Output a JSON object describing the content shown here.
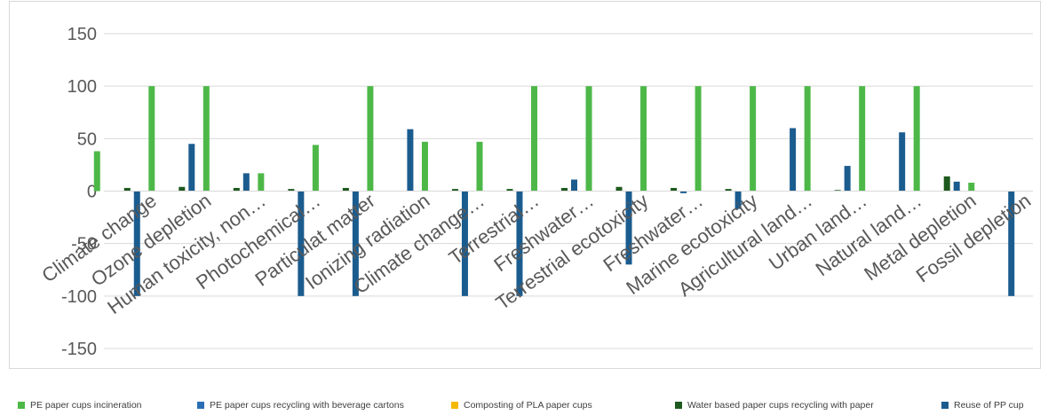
{
  "chart_data": {
    "type": "bar",
    "title": "",
    "xlabel": "",
    "ylabel": "",
    "ylim": [
      -150,
      150
    ],
    "yticks": [
      -150,
      -100,
      -50,
      0,
      50,
      100,
      150
    ],
    "grid": true,
    "legend_position": "bottom",
    "categories": [
      "Climate change",
      "Ozone depletion",
      "Human toxicity, non…",
      "Photochemical…",
      "Particulat matter",
      "Ionizing radiation",
      "Climate change…",
      "Terrestrial…",
      "Freshwater…",
      "Terrestrial ecotoxicity",
      "Freshwater…",
      "Marine ecotoxicity",
      "Agricultural land…",
      "Urban land…",
      "Natural land…",
      "Metal depletion",
      "Fossil depletion"
    ],
    "series": [
      {
        "name": "PE paper cups incineration",
        "color": "#4db848",
        "values": [
          38,
          100,
          100,
          17,
          44,
          100,
          47,
          47,
          100,
          100,
          100,
          100,
          100,
          100,
          100,
          100,
          8
        ]
      },
      {
        "name": "PE paper cups recycling with beverage cartons",
        "color": "#2b6db5",
        "values": [
          0,
          0,
          0,
          0,
          0,
          0,
          0,
          0,
          0,
          0,
          0,
          0,
          0,
          0,
          0,
          0,
          0
        ]
      },
      {
        "name": "Composting of PLA paper cups",
        "color": "#f5b800",
        "values": [
          0,
          0,
          0,
          0,
          0,
          0,
          0,
          0,
          0,
          0,
          0,
          0,
          0,
          0,
          0,
          0,
          0
        ]
      },
      {
        "name": "Water based paper cups recycling with paper",
        "color": "#1e5a1e",
        "values": [
          3,
          4,
          3,
          2,
          3,
          0,
          2,
          2,
          3,
          4,
          3,
          2,
          0,
          1,
          0,
          14,
          0
        ]
      },
      {
        "name": "Reuse of PP cup",
        "color": "#1b5c8f",
        "values": [
          -100,
          45,
          17,
          -100,
          -100,
          59,
          -100,
          -100,
          11,
          -70,
          -2,
          -17,
          60,
          24,
          56,
          9,
          -100
        ]
      }
    ]
  }
}
